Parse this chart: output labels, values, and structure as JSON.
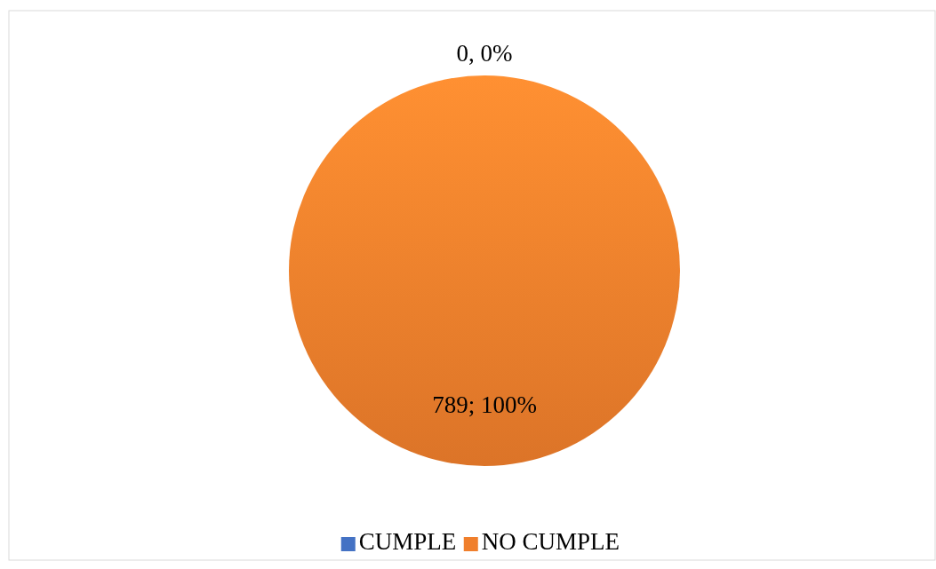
{
  "chart_data": {
    "type": "pie",
    "categories": [
      "CUMPLE",
      "NO CUMPLE"
    ],
    "values": [
      0,
      789
    ],
    "colors": [
      "#4472c4",
      "#f07f2c"
    ],
    "value_labels": [
      "0, 0%",
      "789; 100%"
    ],
    "legend": "bottom"
  }
}
